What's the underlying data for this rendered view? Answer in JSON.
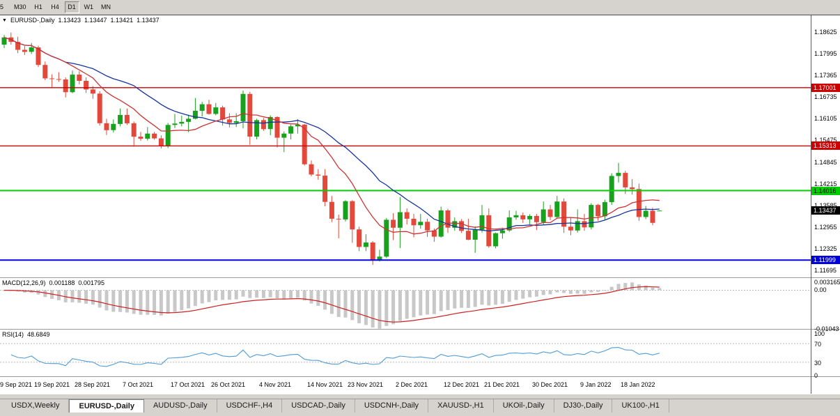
{
  "toolbar": {
    "timeframes": [
      {
        "label": "5",
        "active": false
      },
      {
        "label": "M30",
        "active": false
      },
      {
        "label": "H1",
        "active": false
      },
      {
        "label": "H4",
        "active": false
      },
      {
        "label": "D1",
        "active": true
      },
      {
        "label": "W1",
        "active": false
      },
      {
        "label": "MN",
        "active": false
      }
    ]
  },
  "chart": {
    "title": {
      "dropdown_icon": "▼",
      "symbol": "EURUSD-,Daily",
      "open": "1.13423",
      "high": "1.13447",
      "low": "1.13421",
      "close": "1.13437"
    },
    "y_axis_labels": [
      "1.18625",
      "1.17995",
      "1.17365",
      "1.16735",
      "1.16105",
      "1.15475",
      "1.14845",
      "1.14215",
      "1.13585",
      "1.12955",
      "1.12325",
      "1.11695"
    ],
    "levels": [
      {
        "price": 1.17001,
        "label": "1.17001",
        "color": "#cc0000",
        "text_color": "#ffffff",
        "thickness": 1.4
      },
      {
        "price": 1.15313,
        "label": "1.15313",
        "color": "#cc0000",
        "text_color": "#ffffff",
        "thickness": 1.4
      },
      {
        "price": 1.14016,
        "label": "1.14016",
        "color": "#00ce00",
        "text_color": "#000000",
        "thickness": 2
      },
      {
        "price": 1.11999,
        "label": "1.11999",
        "color": "#0000dd",
        "text_color": "#ffffff",
        "thickness": 2
      }
    ],
    "current_price_tag": {
      "price": 1.13437,
      "label": "1.13437",
      "color": "#000000",
      "text_color": "#ffffff"
    },
    "x_labels": [
      {
        "index": 0,
        "text": "9 Sep 2021"
      },
      {
        "index": 7,
        "text": "19 Sep 2021"
      },
      {
        "index": 13,
        "text": "28 Sep 2021"
      },
      {
        "index": 20,
        "text": "7 Oct 2021"
      },
      {
        "index": 27,
        "text": "17 Oct 2021"
      },
      {
        "index": 33,
        "text": "26 Oct 2021"
      },
      {
        "index": 40,
        "text": "4 Nov 2021"
      },
      {
        "index": 47,
        "text": "14 Nov 2021"
      },
      {
        "index": 53,
        "text": "23 Nov 2021"
      },
      {
        "index": 60,
        "text": "2 Dec 2021"
      },
      {
        "index": 67,
        "text": "12 Dec 2021"
      },
      {
        "index": 73,
        "text": "21 Dec 2021"
      },
      {
        "index": 80,
        "text": "30 Dec 2021"
      },
      {
        "index": 87,
        "text": "9 Jan 2022"
      },
      {
        "index": 93,
        "text": "18 Jan 2022"
      }
    ],
    "colors": {
      "up": "#18a11c",
      "down": "#e2493b",
      "ma_fast": "#cc3333",
      "ma_slow": "#16339c",
      "histogram": "#c8c8c8",
      "signal": "#cc2020",
      "rsi": "#4f9bd5",
      "bg": "#ffffff"
    }
  },
  "chart_data": {
    "type": "candlestick",
    "symbol": "EURUSD",
    "period": "Daily",
    "y_range": [
      1.115,
      1.191
    ],
    "overlays": {
      "ma_fast_period": 10,
      "ma_slow_period": 20
    },
    "candles": [
      [
        1.1825,
        1.1853,
        1.1815,
        1.1846
      ],
      [
        1.1846,
        1.186,
        1.1825,
        1.1833
      ],
      [
        1.1833,
        1.1848,
        1.18,
        1.181
      ],
      [
        1.181,
        1.1821,
        1.1795,
        1.1804
      ],
      [
        1.1804,
        1.183,
        1.1798,
        1.1817
      ],
      [
        1.1817,
        1.1822,
        1.176,
        1.1766
      ],
      [
        1.1766,
        1.1776,
        1.1722,
        1.1727
      ],
      [
        1.1727,
        1.1739,
        1.1701,
        1.1725
      ],
      [
        1.1725,
        1.1745,
        1.1717,
        1.1724
      ],
      [
        1.1724,
        1.173,
        1.1672,
        1.1687
      ],
      [
        1.1687,
        1.175,
        1.1684,
        1.1738
      ],
      [
        1.1738,
        1.1748,
        1.171,
        1.172
      ],
      [
        1.172,
        1.173,
        1.1685,
        1.1695
      ],
      [
        1.1695,
        1.1705,
        1.1668,
        1.1683
      ],
      [
        1.1683,
        1.169,
        1.159,
        1.1597
      ],
      [
        1.1597,
        1.161,
        1.1563,
        1.1577
      ],
      [
        1.1577,
        1.1608,
        1.157,
        1.1595
      ],
      [
        1.1595,
        1.164,
        1.1588,
        1.1621
      ],
      [
        1.1621,
        1.164,
        1.1592,
        1.1597
      ],
      [
        1.1597,
        1.1602,
        1.1529,
        1.1558
      ],
      [
        1.1558,
        1.1572,
        1.1546,
        1.1552
      ],
      [
        1.1552,
        1.1586,
        1.1547,
        1.1567
      ],
      [
        1.1567,
        1.1572,
        1.1549,
        1.1553
      ],
      [
        1.1553,
        1.1562,
        1.1524,
        1.153
      ],
      [
        1.153,
        1.1598,
        1.1525,
        1.1592
      ],
      [
        1.1592,
        1.1624,
        1.1583,
        1.1596
      ],
      [
        1.1596,
        1.1619,
        1.1588,
        1.1601
      ],
      [
        1.1601,
        1.1622,
        1.1571,
        1.161
      ],
      [
        1.161,
        1.167,
        1.1608,
        1.1633
      ],
      [
        1.1633,
        1.1659,
        1.1617,
        1.1652
      ],
      [
        1.1652,
        1.1665,
        1.1622,
        1.1624
      ],
      [
        1.1624,
        1.1656,
        1.162,
        1.1643
      ],
      [
        1.1643,
        1.1648,
        1.159,
        1.1608
      ],
      [
        1.1608,
        1.1626,
        1.1585,
        1.1598
      ],
      [
        1.1598,
        1.1626,
        1.1586,
        1.1603
      ],
      [
        1.1603,
        1.1692,
        1.1582,
        1.1682
      ],
      [
        1.1682,
        1.1688,
        1.1535,
        1.1558
      ],
      [
        1.1558,
        1.161,
        1.155,
        1.1606
      ],
      [
        1.1606,
        1.1612,
        1.1575,
        1.158
      ],
      [
        1.158,
        1.162,
        1.1562,
        1.1615
      ],
      [
        1.1615,
        1.1617,
        1.1527,
        1.1555
      ],
      [
        1.1555,
        1.1573,
        1.1513,
        1.1567
      ],
      [
        1.1567,
        1.1593,
        1.155,
        1.1588
      ],
      [
        1.1588,
        1.1609,
        1.1567,
        1.1593
      ],
      [
        1.1593,
        1.1595,
        1.1474,
        1.1478
      ],
      [
        1.1478,
        1.1489,
        1.1443,
        1.1448
      ],
      [
        1.1448,
        1.1464,
        1.1433,
        1.1445
      ],
      [
        1.1445,
        1.1464,
        1.1356,
        1.1369
      ],
      [
        1.1369,
        1.1386,
        1.131,
        1.132
      ],
      [
        1.132,
        1.1332,
        1.1263,
        1.1318
      ],
      [
        1.1318,
        1.1374,
        1.1312,
        1.1371
      ],
      [
        1.1371,
        1.1374,
        1.125,
        1.1289
      ],
      [
        1.1289,
        1.1297,
        1.1226,
        1.1238
      ],
      [
        1.1238,
        1.1275,
        1.1226,
        1.1251
      ],
      [
        1.1251,
        1.1255,
        1.1186,
        1.1199
      ],
      [
        1.1199,
        1.123,
        1.1196,
        1.121
      ],
      [
        1.121,
        1.1322,
        1.1206,
        1.1317
      ],
      [
        1.1317,
        1.1336,
        1.1258,
        1.1294
      ],
      [
        1.1294,
        1.1383,
        1.1235,
        1.1339
      ],
      [
        1.1339,
        1.135,
        1.1303,
        1.132
      ],
      [
        1.132,
        1.1334,
        1.1266,
        1.1301
      ],
      [
        1.1301,
        1.1334,
        1.1291,
        1.1311
      ],
      [
        1.1311,
        1.132,
        1.1267,
        1.1286
      ],
      [
        1.1286,
        1.1292,
        1.1253,
        1.1268
      ],
      [
        1.1268,
        1.1355,
        1.1265,
        1.1344
      ],
      [
        1.1344,
        1.1349,
        1.1279,
        1.1294
      ],
      [
        1.1294,
        1.1324,
        1.1285,
        1.1313
      ],
      [
        1.1313,
        1.1319,
        1.1279,
        1.1285
      ],
      [
        1.1285,
        1.132,
        1.1258,
        1.1259
      ],
      [
        1.1259,
        1.1298,
        1.1221,
        1.1288
      ],
      [
        1.1288,
        1.136,
        1.128,
        1.133
      ],
      [
        1.133,
        1.135,
        1.1236,
        1.124
      ],
      [
        1.124,
        1.128,
        1.1234,
        1.1278
      ],
      [
        1.1278,
        1.1294,
        1.1262,
        1.1286
      ],
      [
        1.1286,
        1.1344,
        1.1282,
        1.1324
      ],
      [
        1.1324,
        1.1343,
        1.1317,
        1.133
      ],
      [
        1.133,
        1.1338,
        1.1308,
        1.1318
      ],
      [
        1.1318,
        1.1333,
        1.1304,
        1.1328
      ],
      [
        1.1328,
        1.1334,
        1.1287,
        1.131
      ],
      [
        1.131,
        1.137,
        1.1303,
        1.1347
      ],
      [
        1.1347,
        1.136,
        1.1316,
        1.1325
      ],
      [
        1.1325,
        1.1386,
        1.1321,
        1.137
      ],
      [
        1.137,
        1.1379,
        1.1279,
        1.1297
      ],
      [
        1.1297,
        1.1323,
        1.1272,
        1.1286
      ],
      [
        1.1286,
        1.1347,
        1.128,
        1.1313
      ],
      [
        1.1313,
        1.1334,
        1.1285,
        1.1295
      ],
      [
        1.1295,
        1.1365,
        1.1289,
        1.136
      ],
      [
        1.136,
        1.1363,
        1.1314,
        1.1327
      ],
      [
        1.1327,
        1.1375,
        1.1315,
        1.1368
      ],
      [
        1.1368,
        1.1452,
        1.136,
        1.1444
      ],
      [
        1.1444,
        1.1482,
        1.1425,
        1.1453
      ],
      [
        1.1453,
        1.1459,
        1.1392,
        1.1411
      ],
      [
        1.1411,
        1.1435,
        1.139,
        1.1406
      ],
      [
        1.1406,
        1.1422,
        1.1314,
        1.1325
      ],
      [
        1.1325,
        1.1357,
        1.1319,
        1.1343
      ],
      [
        1.1343,
        1.1352,
        1.1301,
        1.1308
      ],
      [
        1.13423,
        1.13447,
        1.13421,
        1.13437
      ]
    ]
  },
  "macd": {
    "name": "MACD(12,26,9)",
    "value_main": "0.001188",
    "value_signal": "0.001795",
    "fast": 12,
    "slow": 26,
    "signal": 9,
    "axis_labels": [
      "0.003165",
      "0.00",
      "-0.01043"
    ],
    "y_range": [
      -0.0105,
      0.0033
    ]
  },
  "rsi": {
    "name": "RSI(14)",
    "value": "48.6849",
    "period": 14,
    "levels": [
      70,
      30
    ],
    "axis_labels": [
      "100",
      "70",
      "30",
      "0"
    ],
    "y_range": [
      0,
      100
    ]
  },
  "tabs": [
    {
      "label": "USDX,Weekly",
      "active": false
    },
    {
      "label": "EURUSD-,Daily",
      "active": true
    },
    {
      "label": "AUDUSD-,Daily",
      "active": false
    },
    {
      "label": "USDCHF-,H4",
      "active": false
    },
    {
      "label": "USDCAD-,Daily",
      "active": false
    },
    {
      "label": "USDCNH-,Daily",
      "active": false
    },
    {
      "label": "XAUUSD-,H1",
      "active": false
    },
    {
      "label": "UKOil-,Daily",
      "active": false
    },
    {
      "label": "DJ30-,Daily",
      "active": false
    },
    {
      "label": "UK100-,H1",
      "active": false
    }
  ]
}
